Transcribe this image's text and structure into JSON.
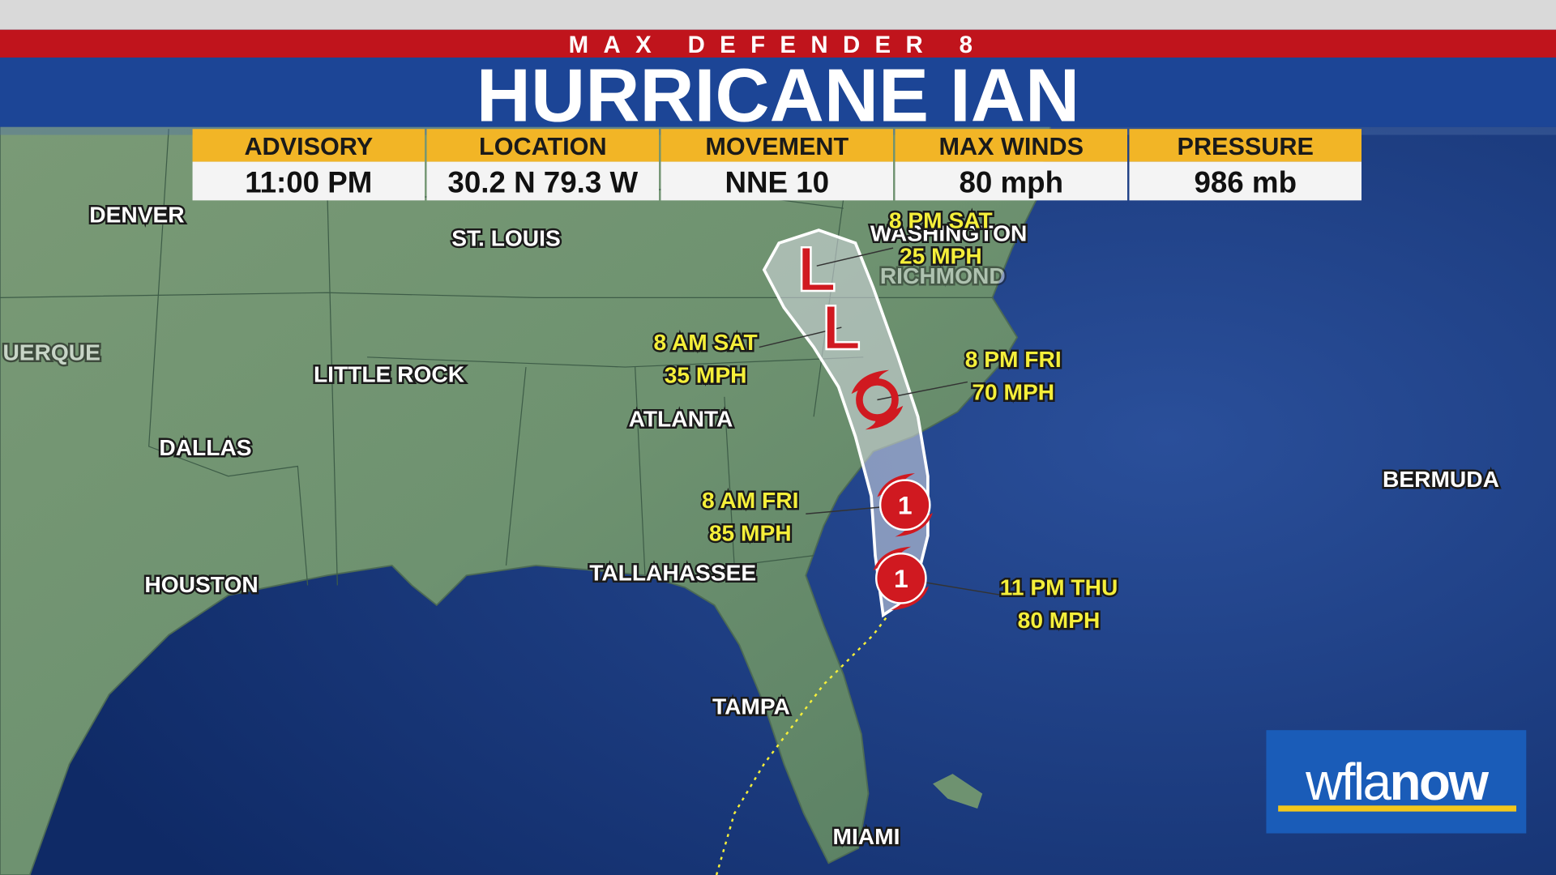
{
  "header": {
    "brand": "MAX DEFENDER 8",
    "title": "HURRICANE IAN"
  },
  "info": {
    "columns": [
      {
        "label": "ADVISORY",
        "value": "11:00 PM"
      },
      {
        "label": "LOCATION",
        "value": "30.2 N  79.3 W"
      },
      {
        "label": "MOVEMENT",
        "value": "NNE 10"
      },
      {
        "label": "MAX WINDS",
        "value": "80 mph"
      },
      {
        "label": "PRESSURE",
        "value": "986 mb"
      }
    ]
  },
  "cities": [
    "DENVER",
    "ST. LOUIS",
    "WASHINGTON",
    "RICHMOND",
    "UERQUE",
    "LITTLE ROCK",
    "DALLAS",
    "ATLANTA",
    "HOUSTON",
    "TALLAHASSEE",
    "TAMPA",
    "MIAMI",
    "BERMUDA"
  ],
  "forecast": [
    {
      "time": "8 PM SAT",
      "wind": "25 MPH"
    },
    {
      "time": "8 AM SAT",
      "wind": "35 MPH"
    },
    {
      "time": "8 PM FRI",
      "wind": "70 MPH"
    },
    {
      "time": "8 AM FRI",
      "wind": "85 MPH"
    },
    {
      "time": "11 PM THU",
      "wind": "80 MPH"
    }
  ],
  "symbols": {
    "hurricane": "1",
    "low": "L"
  },
  "logo": {
    "part1": "wfla",
    "part2": "now"
  }
}
